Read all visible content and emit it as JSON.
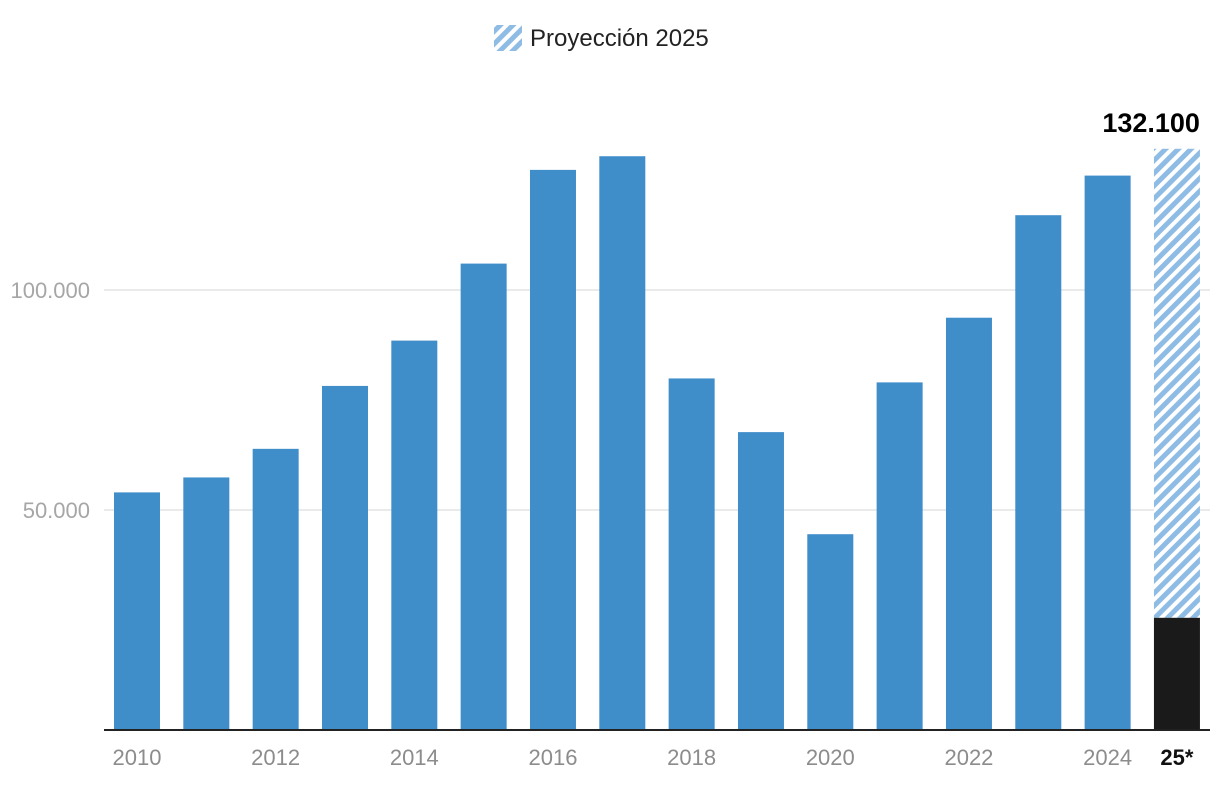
{
  "chart_data": {
    "type": "bar",
    "legend": {
      "label": "Proyección 2025",
      "position": "top-center"
    },
    "categories": [
      "2010",
      "2011",
      "2012",
      "2013",
      "2014",
      "2015",
      "2016",
      "2017",
      "2018",
      "2019",
      "2020",
      "2021",
      "2022",
      "2023",
      "2024",
      "25*"
    ],
    "x_tick_labels": [
      "2010",
      "",
      "2012",
      "",
      "2014",
      "",
      "2016",
      "",
      "2018",
      "",
      "2020",
      "",
      "2022",
      "",
      "2024",
      "25*"
    ],
    "series": [
      {
        "values": [
          54000,
          57400,
          63900,
          78200,
          88500,
          106000,
          127300,
          130400,
          79900,
          67700,
          44500,
          79000,
          93700,
          117000,
          126000,
          null
        ]
      }
    ],
    "projection": {
      "category": "25*",
      "actual_to_date": 25500,
      "projected_total": 132100,
      "label": "132.100"
    },
    "y_ticks": [
      {
        "value": 50000,
        "label": "50.000"
      },
      {
        "value": 100000,
        "label": "100.000"
      }
    ],
    "ylim": [
      0,
      145000
    ],
    "grid": true,
    "colors": {
      "bar": "#3f8dc9",
      "actual_2025": "#1a1a1a",
      "projection_stripe": "#8fbce4",
      "grid": "#e3e3e3",
      "axis": "#222222"
    }
  }
}
